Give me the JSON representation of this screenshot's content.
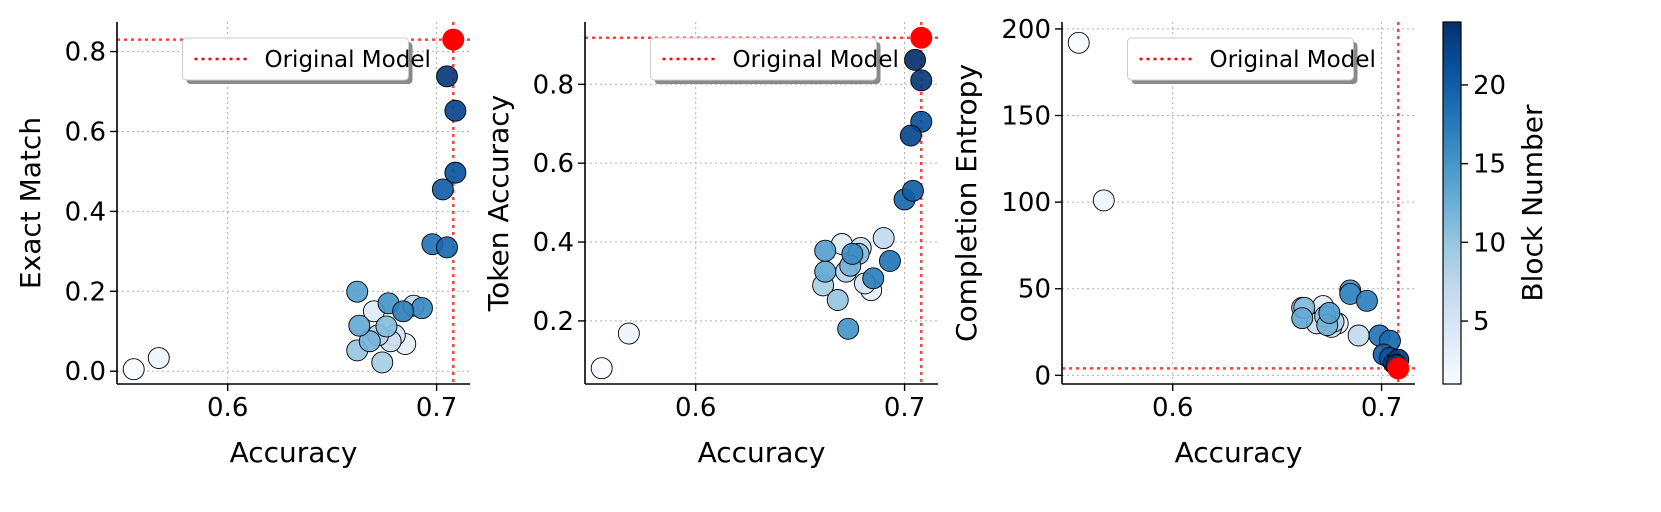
{
  "colorbar": {
    "label": "Block Number",
    "range": [
      1,
      24
    ],
    "ticks": [
      5,
      10,
      15,
      20
    ],
    "colormap": [
      "#f7fbff",
      "#deebf7",
      "#c6dbef",
      "#9ecae1",
      "#6baed6",
      "#4292c6",
      "#2171b5",
      "#08519c",
      "#08306b"
    ]
  },
  "reference_style": {
    "color": "#ff0000",
    "point_color": "#ff0000"
  },
  "chart_data": [
    {
      "type": "scatter",
      "xlabel": "Accuracy",
      "ylabel": "Exact Match",
      "xlim": [
        0.547,
        0.716
      ],
      "ylim": [
        -0.032,
        0.874
      ],
      "xticks": [
        0.6,
        0.7
      ],
      "yticks": [
        0.0,
        0.2,
        0.4,
        0.6,
        0.8
      ],
      "xtick_labels": [
        "0.6",
        "0.7"
      ],
      "ytick_labels": [
        "0.0",
        "0.2",
        "0.4",
        "0.6",
        "0.8"
      ],
      "grid": true,
      "legend": {
        "position": "top",
        "entries": [
          "Original Model"
        ]
      },
      "reference": {
        "label": "Original Model",
        "x": 0.708,
        "y": 0.83
      },
      "points": [
        {
          "block": 1,
          "x": 0.555,
          "y": 0.005
        },
        {
          "block": 2,
          "x": 0.567,
          "y": 0.033
        },
        {
          "block": 3,
          "x": 0.685,
          "y": 0.068
        },
        {
          "block": 4,
          "x": 0.67,
          "y": 0.15
        },
        {
          "block": 5,
          "x": 0.68,
          "y": 0.09
        },
        {
          "block": 6,
          "x": 0.678,
          "y": 0.075
        },
        {
          "block": 7,
          "x": 0.689,
          "y": 0.164
        },
        {
          "block": 8,
          "x": 0.672,
          "y": 0.09
        },
        {
          "block": 9,
          "x": 0.674,
          "y": 0.022
        },
        {
          "block": 10,
          "x": 0.662,
          "y": 0.052
        },
        {
          "block": 11,
          "x": 0.676,
          "y": 0.112
        },
        {
          "block": 12,
          "x": 0.668,
          "y": 0.075
        },
        {
          "block": 13,
          "x": 0.663,
          "y": 0.114
        },
        {
          "block": 14,
          "x": 0.662,
          "y": 0.199
        },
        {
          "block": 15,
          "x": 0.677,
          "y": 0.17
        },
        {
          "block": 16,
          "x": 0.693,
          "y": 0.158
        },
        {
          "block": 17,
          "x": 0.684,
          "y": 0.15
        },
        {
          "block": 18,
          "x": 0.698,
          "y": 0.318
        },
        {
          "block": 19,
          "x": 0.705,
          "y": 0.31
        },
        {
          "block": 20,
          "x": 0.703,
          "y": 0.455
        },
        {
          "block": 21,
          "x": 0.709,
          "y": 0.497
        },
        {
          "block": 22,
          "x": 0.709,
          "y": 0.652
        },
        {
          "block": 23,
          "x": 0.705,
          "y": 0.738
        }
      ]
    },
    {
      "type": "scatter",
      "xlabel": "Accuracy",
      "ylabel": "Token Accuracy",
      "xlim": [
        0.547,
        0.716
      ],
      "ylim": [
        0.04,
        0.958
      ],
      "xticks": [
        0.6,
        0.7
      ],
      "yticks": [
        0.2,
        0.4,
        0.6,
        0.8
      ],
      "xtick_labels": [
        "0.6",
        "0.7"
      ],
      "ytick_labels": [
        "0.2",
        "0.4",
        "0.6",
        "0.8"
      ],
      "grid": true,
      "legend": {
        "position": "top",
        "entries": [
          "Original Model"
        ]
      },
      "reference": {
        "label": "Original Model",
        "x": 0.708,
        "y": 0.918
      },
      "points": [
        {
          "block": 1,
          "x": 0.555,
          "y": 0.08
        },
        {
          "block": 2,
          "x": 0.568,
          "y": 0.168
        },
        {
          "block": 3,
          "x": 0.684,
          "y": 0.278
        },
        {
          "block": 4,
          "x": 0.67,
          "y": 0.395
        },
        {
          "block": 5,
          "x": 0.681,
          "y": 0.295
        },
        {
          "block": 6,
          "x": 0.679,
          "y": 0.385
        },
        {
          "block": 7,
          "x": 0.69,
          "y": 0.41
        },
        {
          "block": 8,
          "x": 0.672,
          "y": 0.325
        },
        {
          "block": 9,
          "x": 0.661,
          "y": 0.29
        },
        {
          "block": 10,
          "x": 0.668,
          "y": 0.253
        },
        {
          "block": 11,
          "x": 0.678,
          "y": 0.37
        },
        {
          "block": 12,
          "x": 0.674,
          "y": 0.34
        },
        {
          "block": 13,
          "x": 0.662,
          "y": 0.325
        },
        {
          "block": 14,
          "x": 0.662,
          "y": 0.378
        },
        {
          "block": 15,
          "x": 0.673,
          "y": 0.18
        },
        {
          "block": 16,
          "x": 0.675,
          "y": 0.37
        },
        {
          "block": 17,
          "x": 0.685,
          "y": 0.308
        },
        {
          "block": 18,
          "x": 0.693,
          "y": 0.352
        },
        {
          "block": 19,
          "x": 0.7,
          "y": 0.508
        },
        {
          "block": 20,
          "x": 0.704,
          "y": 0.53
        },
        {
          "block": 21,
          "x": 0.708,
          "y": 0.705
        },
        {
          "block": 22,
          "x": 0.703,
          "y": 0.67
        },
        {
          "block": 23,
          "x": 0.708,
          "y": 0.81
        },
        {
          "block": 24,
          "x": 0.705,
          "y": 0.862
        }
      ]
    },
    {
      "type": "scatter",
      "xlabel": "Accuracy",
      "ylabel": "Completion Entropy",
      "xlim": [
        0.547,
        0.716
      ],
      "ylim": [
        -5,
        204
      ],
      "xticks": [
        0.6,
        0.7
      ],
      "yticks": [
        0,
        50,
        100,
        150,
        200
      ],
      "xtick_labels": [
        "0.6",
        "0.7"
      ],
      "ytick_labels": [
        "0",
        "50",
        "100",
        "150",
        "200"
      ],
      "grid": true,
      "legend": {
        "position": "top",
        "entries": [
          "Original Model"
        ]
      },
      "reference": {
        "label": "Original Model",
        "x": 0.708,
        "y": 4
      },
      "points": [
        {
          "block": 1,
          "x": 0.555,
          "y": 192
        },
        {
          "block": 2,
          "x": 0.567,
          "y": 101
        },
        {
          "block": 3,
          "x": 0.679,
          "y": 30
        },
        {
          "block": 4,
          "x": 0.672,
          "y": 40
        },
        {
          "block": 5,
          "x": 0.676,
          "y": 28
        },
        {
          "block": 6,
          "x": 0.669,
          "y": 30
        },
        {
          "block": 7,
          "x": 0.689,
          "y": 23
        },
        {
          "block": 8,
          "x": 0.677,
          "y": 31
        },
        {
          "block": 9,
          "x": 0.662,
          "y": 39
        },
        {
          "block": 10,
          "x": 0.673,
          "y": 34
        },
        {
          "block": 11,
          "x": 0.663,
          "y": 39
        },
        {
          "block": 12,
          "x": 0.674,
          "y": 29
        },
        {
          "block": 13,
          "x": 0.662,
          "y": 33
        },
        {
          "block": 14,
          "x": 0.675,
          "y": 36
        },
        {
          "block": 15,
          "x": 0.685,
          "y": 49
        },
        {
          "block": 16,
          "x": 0.685,
          "y": 47
        },
        {
          "block": 17,
          "x": 0.693,
          "y": 43
        },
        {
          "block": 18,
          "x": 0.699,
          "y": 23
        },
        {
          "block": 19,
          "x": 0.704,
          "y": 20
        },
        {
          "block": 20,
          "x": 0.701,
          "y": 12
        },
        {
          "block": 21,
          "x": 0.704,
          "y": 10
        },
        {
          "block": 22,
          "x": 0.706,
          "y": 7
        },
        {
          "block": 23,
          "x": 0.708,
          "y": 9
        },
        {
          "block": 24,
          "x": 0.707,
          "y": 6
        }
      ]
    }
  ]
}
